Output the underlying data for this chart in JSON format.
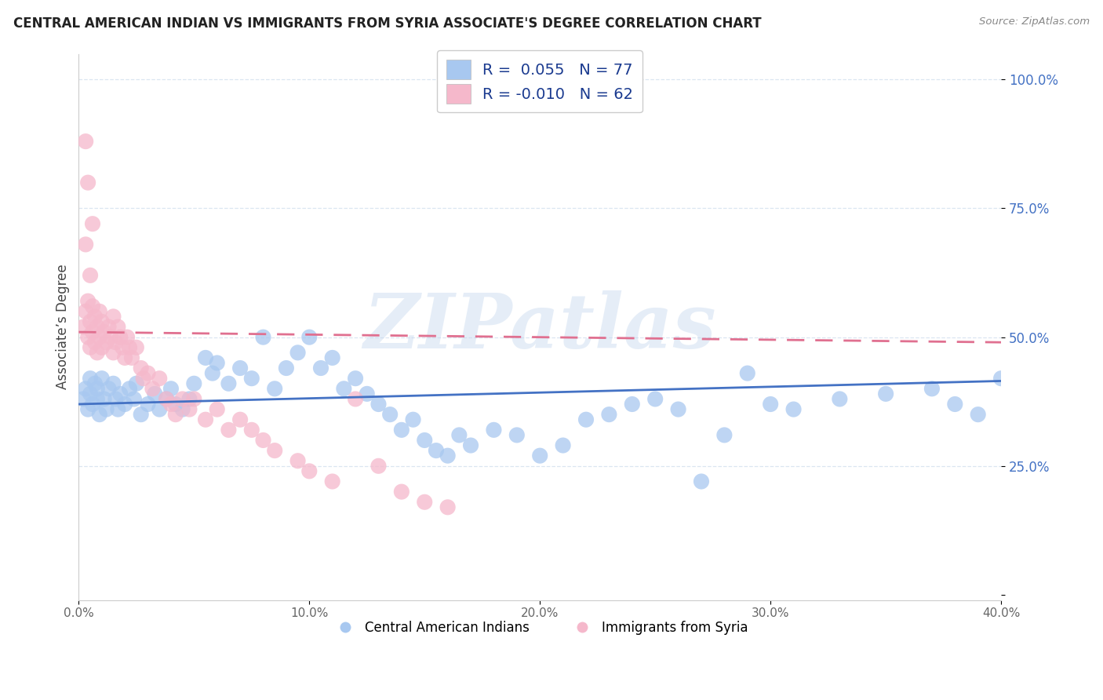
{
  "title": "CENTRAL AMERICAN INDIAN VS IMMIGRANTS FROM SYRIA ASSOCIATE'S DEGREE CORRELATION CHART",
  "source": "Source: ZipAtlas.com",
  "ylabel": "Associate’s Degree",
  "xlim": [
    0.0,
    0.4
  ],
  "ylim": [
    -0.01,
    1.05
  ],
  "xticks": [
    0.0,
    0.1,
    0.2,
    0.3,
    0.4
  ],
  "xticklabels": [
    "0.0%",
    "10.0%",
    "20.0%",
    "30.0%",
    "40.0%"
  ],
  "yticks": [
    0.0,
    0.25,
    0.5,
    0.75,
    1.0
  ],
  "yticklabels": [
    "",
    "25.0%",
    "50.0%",
    "75.0%",
    "100.0%"
  ],
  "legend1_r": "0.055",
  "legend1_n": "77",
  "legend2_r": "-0.010",
  "legend2_n": "62",
  "series1_color": "#a8c8f0",
  "series2_color": "#f5b8cb",
  "trendline1_color": "#4472c4",
  "trendline2_color": "#e07090",
  "watermark": "ZIPatlas",
  "blue_legend": "Central American Indians",
  "pink_legend": "Immigrants from Syria",
  "grid_color": "#d8e4f0",
  "tick_color_y": "#4472c4",
  "tick_color_x": "#666666",
  "title_color": "#222222",
  "source_color": "#888888",
  "blue_x": [
    0.002,
    0.003,
    0.004,
    0.005,
    0.005,
    0.006,
    0.007,
    0.008,
    0.008,
    0.009,
    0.01,
    0.011,
    0.012,
    0.013,
    0.015,
    0.016,
    0.017,
    0.018,
    0.02,
    0.022,
    0.024,
    0.025,
    0.027,
    0.03,
    0.033,
    0.035,
    0.038,
    0.04,
    0.042,
    0.045,
    0.048,
    0.05,
    0.055,
    0.058,
    0.06,
    0.065,
    0.07,
    0.075,
    0.08,
    0.085,
    0.09,
    0.095,
    0.1,
    0.105,
    0.11,
    0.115,
    0.12,
    0.125,
    0.13,
    0.135,
    0.14,
    0.145,
    0.15,
    0.155,
    0.16,
    0.165,
    0.17,
    0.18,
    0.19,
    0.2,
    0.21,
    0.22,
    0.23,
    0.24,
    0.25,
    0.26,
    0.27,
    0.28,
    0.3,
    0.31,
    0.33,
    0.35,
    0.37,
    0.38,
    0.39,
    0.4,
    0.29
  ],
  "blue_y": [
    0.38,
    0.4,
    0.36,
    0.39,
    0.42,
    0.37,
    0.41,
    0.38,
    0.4,
    0.35,
    0.42,
    0.38,
    0.36,
    0.4,
    0.41,
    0.38,
    0.36,
    0.39,
    0.37,
    0.4,
    0.38,
    0.41,
    0.35,
    0.37,
    0.39,
    0.36,
    0.38,
    0.4,
    0.37,
    0.36,
    0.38,
    0.41,
    0.46,
    0.43,
    0.45,
    0.41,
    0.44,
    0.42,
    0.5,
    0.4,
    0.44,
    0.47,
    0.5,
    0.44,
    0.46,
    0.4,
    0.42,
    0.39,
    0.37,
    0.35,
    0.32,
    0.34,
    0.3,
    0.28,
    0.27,
    0.31,
    0.29,
    0.32,
    0.31,
    0.27,
    0.29,
    0.34,
    0.35,
    0.37,
    0.38,
    0.36,
    0.22,
    0.31,
    0.37,
    0.36,
    0.38,
    0.39,
    0.4,
    0.37,
    0.35,
    0.42,
    0.43
  ],
  "pink_x": [
    0.002,
    0.003,
    0.004,
    0.004,
    0.005,
    0.005,
    0.006,
    0.006,
    0.007,
    0.007,
    0.008,
    0.008,
    0.009,
    0.009,
    0.01,
    0.01,
    0.011,
    0.012,
    0.013,
    0.014,
    0.015,
    0.015,
    0.016,
    0.017,
    0.018,
    0.019,
    0.02,
    0.021,
    0.022,
    0.023,
    0.025,
    0.027,
    0.028,
    0.03,
    0.032,
    0.035,
    0.038,
    0.04,
    0.042,
    0.045,
    0.048,
    0.05,
    0.055,
    0.06,
    0.065,
    0.07,
    0.075,
    0.08,
    0.085,
    0.095,
    0.1,
    0.11,
    0.12,
    0.13,
    0.14,
    0.15,
    0.16,
    0.003,
    0.004,
    0.006,
    0.003,
    0.005
  ],
  "pink_y": [
    0.52,
    0.55,
    0.5,
    0.57,
    0.53,
    0.48,
    0.56,
    0.51,
    0.49,
    0.54,
    0.52,
    0.47,
    0.55,
    0.5,
    0.53,
    0.48,
    0.51,
    0.49,
    0.52,
    0.5,
    0.47,
    0.54,
    0.49,
    0.52,
    0.5,
    0.48,
    0.46,
    0.5,
    0.48,
    0.46,
    0.48,
    0.44,
    0.42,
    0.43,
    0.4,
    0.42,
    0.38,
    0.37,
    0.35,
    0.38,
    0.36,
    0.38,
    0.34,
    0.36,
    0.32,
    0.34,
    0.32,
    0.3,
    0.28,
    0.26,
    0.24,
    0.22,
    0.38,
    0.25,
    0.2,
    0.18,
    0.17,
    0.88,
    0.8,
    0.72,
    0.68,
    0.62
  ],
  "trendline1_x": [
    0.0,
    0.4
  ],
  "trendline1_y": [
    0.37,
    0.415
  ],
  "trendline2_x": [
    0.0,
    0.4
  ],
  "trendline2_y": [
    0.51,
    0.49
  ]
}
